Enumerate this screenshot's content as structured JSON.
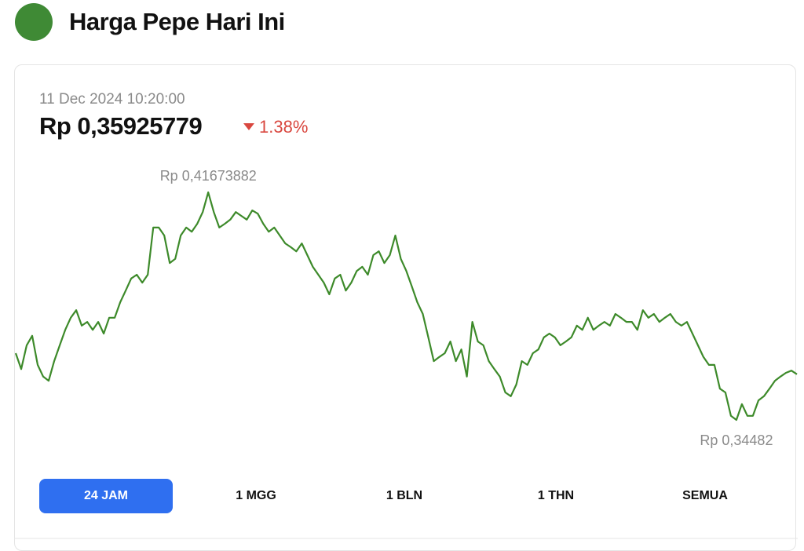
{
  "header": {
    "title": "Harga Pepe Hari Ini"
  },
  "price_widget": {
    "timestamp": "11 Dec 2024 10:20:00",
    "price": "Rp 0,35925779",
    "change": "1.38%",
    "tabs": [
      "24 JAM",
      "1 MGG",
      "1 BLN",
      "1 THN",
      "SEMUA"
    ]
  },
  "chart_data": {
    "type": "line",
    "color": "#3d8a2a",
    "values": [
      0.3659,
      0.3609,
      0.3684,
      0.3714,
      0.3622,
      0.3585,
      0.3572,
      0.3634,
      0.3684,
      0.3733,
      0.3771,
      0.3795,
      0.3746,
      0.3758,
      0.3733,
      0.3758,
      0.3721,
      0.3771,
      0.3771,
      0.382,
      0.3857,
      0.3895,
      0.3907,
      0.3882,
      0.3907,
      0.4056,
      0.4056,
      0.4031,
      0.3944,
      0.3957,
      0.4031,
      0.4056,
      0.4043,
      0.4068,
      0.4105,
      0.41673882,
      0.4105,
      0.4056,
      0.4068,
      0.4081,
      0.4105,
      0.4093,
      0.4081,
      0.411,
      0.41,
      0.4068,
      0.4043,
      0.4056,
      0.4031,
      0.4006,
      0.3994,
      0.3981,
      0.4006,
      0.3969,
      0.3932,
      0.3907,
      0.3882,
      0.3845,
      0.3895,
      0.3907,
      0.3857,
      0.3882,
      0.3919,
      0.3932,
      0.3907,
      0.3969,
      0.3981,
      0.3944,
      0.3969,
      0.4031,
      0.3957,
      0.3919,
      0.387,
      0.382,
      0.3783,
      0.3709,
      0.3634,
      0.3647,
      0.3659,
      0.3696,
      0.3634,
      0.3671,
      0.3585,
      0.3758,
      0.3696,
      0.3684,
      0.3634,
      0.3609,
      0.3585,
      0.3535,
      0.3523,
      0.356,
      0.3634,
      0.3622,
      0.3659,
      0.3671,
      0.3709,
      0.3721,
      0.3709,
      0.3684,
      0.3696,
      0.3709,
      0.3746,
      0.3733,
      0.3771,
      0.3733,
      0.3746,
      0.3758,
      0.3746,
      0.3783,
      0.3771,
      0.3758,
      0.3758,
      0.3733,
      0.3795,
      0.3771,
      0.3783,
      0.3758,
      0.3771,
      0.3783,
      0.3758,
      0.3746,
      0.3758,
      0.3721,
      0.3684,
      0.3647,
      0.3622,
      0.3622,
      0.3547,
      0.3535,
      0.3461,
      0.34482,
      0.3498,
      0.3461,
      0.3461,
      0.351,
      0.3523,
      0.3547,
      0.3572,
      0.3585,
      0.3597,
      0.3604,
      0.35925779
    ],
    "annotations": [
      {
        "value": 0.41673882,
        "label": "Rp 0,41673882"
      },
      {
        "value": 0.34482,
        "label": "Rp 0,34482"
      }
    ]
  }
}
